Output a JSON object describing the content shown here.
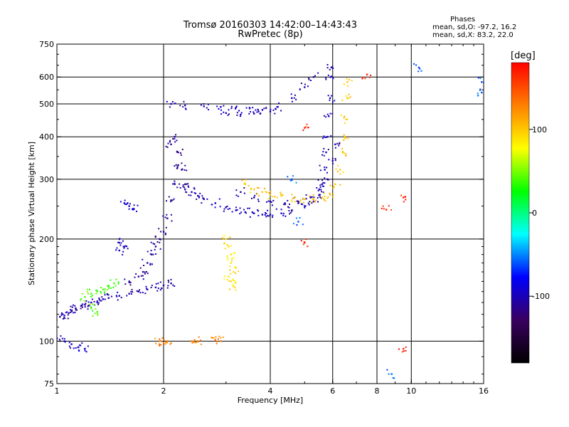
{
  "header": {
    "title_line1": "Tromsø 20160303 14:42:00–14:43:43",
    "title_line2": "RwPretec (8p)",
    "phases_heading": "Phases",
    "phases_o": "mean, sd,O: -97.2, 16.2",
    "phases_x": "mean, sd,X: 83.2, 22.0"
  },
  "colorbar": {
    "unit_label": "[deg]",
    "tick_labels": [
      "100",
      "0",
      "-100"
    ],
    "tick_values": [
      100,
      0,
      -100
    ],
    "range": [
      -180,
      180
    ],
    "colors": [
      "#000000",
      "#3a0060",
      "#0000ff",
      "#00ffff",
      "#00ff00",
      "#ffff00",
      "#ff8000",
      "#ff0000"
    ]
  },
  "chart_data": {
    "type": "scatter",
    "title": "Tromsø 20160303 14:42:00–14:43:43",
    "subtitle": "RwPretec (8p)",
    "xlabel": "Frequency [MHz]",
    "ylabel": "Stationary phase Virtual Height [km]",
    "xscale": "log",
    "yscale": "log",
    "xlim": [
      1,
      16
    ],
    "ylim": [
      75,
      750
    ],
    "x_ticks": [
      1,
      2,
      4,
      6,
      8,
      10,
      16
    ],
    "x_tick_labels": [
      "1",
      "2",
      "4",
      "6",
      "8",
      "10",
      "16"
    ],
    "x_grid": [
      2,
      4,
      6,
      8,
      10
    ],
    "y_ticks": [
      75,
      100,
      200,
      300,
      400,
      500,
      600,
      750
    ],
    "y_tick_labels": [
      "75",
      "100",
      "200",
      "300",
      "400",
      "500",
      "600",
      "750"
    ],
    "y_grid": [
      100,
      200,
      300,
      400,
      500,
      600
    ],
    "grid": true,
    "color_encoding": "phase [deg]",
    "series": [
      {
        "phase": -105,
        "points": [
          [
            1.02,
            118
          ],
          [
            1.05,
            119
          ],
          [
            1.08,
            121
          ],
          [
            1.1,
            123
          ],
          [
            1.13,
            125
          ],
          [
            1.17,
            127
          ],
          [
            1.2,
            128
          ],
          [
            1.25,
            130
          ],
          [
            1.3,
            131
          ],
          [
            1.35,
            133
          ],
          [
            1.4,
            134
          ],
          [
            1.5,
            136
          ],
          [
            1.6,
            138
          ],
          [
            1.7,
            140
          ],
          [
            1.8,
            142
          ],
          [
            1.9,
            144
          ],
          [
            2.0,
            146
          ],
          [
            2.1,
            148
          ]
        ]
      },
      {
        "phase": -110,
        "points": [
          [
            1.6,
            150
          ],
          [
            1.7,
            155
          ],
          [
            1.75,
            160
          ],
          [
            1.8,
            170
          ],
          [
            1.85,
            180
          ],
          [
            1.9,
            190
          ],
          [
            1.95,
            200
          ],
          [
            2.0,
            210
          ],
          [
            2.05,
            230
          ],
          [
            2.1,
            260
          ],
          [
            2.15,
            290
          ],
          [
            2.2,
            330
          ],
          [
            2.1,
            380
          ],
          [
            2.15,
            400
          ],
          [
            2.2,
            360
          ],
          [
            2.25,
            320
          ],
          [
            2.3,
            290
          ]
        ]
      },
      {
        "phase": -100,
        "points": [
          [
            2.3,
            280
          ],
          [
            2.4,
            275
          ],
          [
            2.5,
            268
          ],
          [
            2.6,
            262
          ],
          [
            2.8,
            255
          ],
          [
            3.0,
            248
          ],
          [
            3.2,
            243
          ],
          [
            3.4,
            240
          ],
          [
            3.6,
            238
          ],
          [
            3.8,
            236
          ],
          [
            4.0,
            236
          ],
          [
            4.3,
            238
          ],
          [
            4.6,
            242
          ],
          [
            5.0,
            250
          ],
          [
            5.3,
            258
          ],
          [
            5.5,
            270
          ],
          [
            5.6,
            290
          ],
          [
            5.7,
            320
          ],
          [
            5.75,
            360
          ],
          [
            5.8,
            400
          ],
          [
            5.85,
            460
          ],
          [
            5.9,
            520
          ],
          [
            5.92,
            600
          ],
          [
            5.95,
            640
          ]
        ]
      },
      {
        "phase": -105,
        "points": [
          [
            3.3,
            275
          ],
          [
            3.6,
            265
          ],
          [
            4.0,
            258
          ],
          [
            4.4,
            255
          ],
          [
            4.8,
            258
          ],
          [
            5.2,
            265
          ],
          [
            5.5,
            280
          ],
          [
            5.8,
            300
          ],
          [
            6.0,
            340
          ],
          [
            6.1,
            380
          ]
        ]
      },
      {
        "phase": -100,
        "points": [
          [
            2.1,
            500
          ],
          [
            2.3,
            495
          ],
          [
            2.6,
            492
          ],
          [
            2.9,
            490
          ],
          [
            3.2,
            488
          ],
          [
            3.5,
            485
          ],
          [
            3.8,
            480
          ],
          [
            4.0,
            475
          ],
          [
            3.0,
            470
          ],
          [
            3.3,
            465
          ],
          [
            3.6,
            468
          ],
          [
            4.2,
            490
          ],
          [
            4.6,
            520
          ],
          [
            5.0,
            560
          ],
          [
            5.3,
            600
          ]
        ]
      },
      {
        "phase": 100,
        "points": [
          [
            3.4,
            290
          ],
          [
            3.6,
            280
          ],
          [
            3.8,
            275
          ],
          [
            4.0,
            270
          ],
          [
            4.3,
            268
          ],
          [
            4.7,
            265
          ],
          [
            5.0,
            262
          ],
          [
            5.3,
            262
          ],
          [
            5.6,
            265
          ],
          [
            5.9,
            270
          ],
          [
            6.1,
            290
          ],
          [
            6.3,
            320
          ],
          [
            6.4,
            360
          ],
          [
            6.5,
            400
          ],
          [
            6.55,
            450
          ],
          [
            6.6,
            520
          ],
          [
            6.6,
            580
          ]
        ]
      },
      {
        "phase": 90,
        "points": [
          [
            3.0,
            200
          ],
          [
            3.05,
            190
          ],
          [
            3.1,
            180
          ],
          [
            3.1,
            170
          ],
          [
            3.15,
            160
          ],
          [
            3.1,
            150
          ],
          [
            3.15,
            145
          ],
          [
            3.05,
            155
          ]
        ]
      },
      {
        "phase": 40,
        "points": [
          [
            1.2,
            135
          ],
          [
            1.25,
            138
          ],
          [
            1.3,
            140
          ],
          [
            1.35,
            142
          ],
          [
            1.4,
            145
          ],
          [
            1.45,
            148
          ],
          [
            1.25,
            125
          ],
          [
            1.3,
            122
          ]
        ]
      },
      {
        "phase": -95,
        "points": [
          [
            1.0,
            102
          ],
          [
            1.05,
            100
          ],
          [
            1.1,
            98
          ],
          [
            1.15,
            96
          ],
          [
            1.2,
            95
          ]
        ]
      },
      {
        "phase": -95,
        "points": [
          [
            1.55,
            255
          ],
          [
            1.6,
            250
          ],
          [
            1.65,
            245
          ],
          [
            1.5,
            195
          ],
          [
            1.55,
            190
          ],
          [
            1.5,
            185
          ]
        ]
      },
      {
        "phase": 130,
        "points": [
          [
            1.95,
            100
          ],
          [
            2.0,
            99
          ],
          [
            2.05,
            100
          ],
          [
            2.4,
            100
          ],
          [
            2.5,
            100
          ],
          [
            2.8,
            101
          ],
          [
            2.9,
            100
          ]
        ]
      },
      {
        "phase": 165,
        "points": [
          [
            5.0,
            425
          ],
          [
            7.5,
            610
          ],
          [
            9.5,
            265
          ],
          [
            8.5,
            244
          ],
          [
            5.0,
            195
          ],
          [
            9.5,
            95
          ]
        ]
      },
      {
        "phase": -60,
        "points": [
          [
            8.8,
            80
          ],
          [
            10.5,
            640
          ],
          [
            15.8,
            580
          ],
          [
            15.8,
            540
          ],
          [
            4.6,
            300
          ],
          [
            4.8,
            225
          ]
        ]
      }
    ]
  }
}
